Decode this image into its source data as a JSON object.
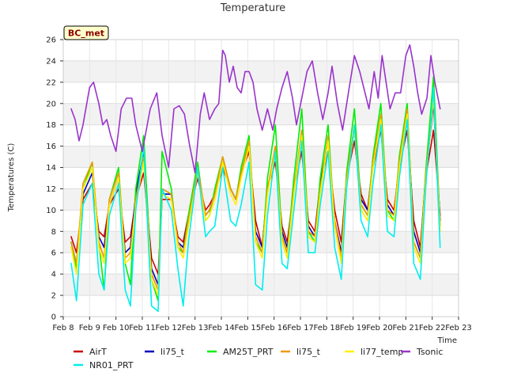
{
  "chart_data": {
    "type": "line",
    "title": "Temperature",
    "xlabel": "Time",
    "ylabel": "Temperatures (C)",
    "badge": "BC_met",
    "xlim": [
      8,
      23
    ],
    "ylim": [
      0,
      26
    ],
    "x_ticks": [
      8,
      9,
      10,
      11,
      12,
      13,
      14,
      15,
      16,
      17,
      18,
      19,
      20,
      21,
      22,
      23
    ],
    "x_tick_labels": [
      "Feb 8",
      "Feb 9",
      "Feb 10",
      "Feb 11",
      "Feb 12",
      "Feb 13",
      "Feb 14",
      "Feb 15",
      "Feb 16",
      "Feb 17",
      "Feb 18",
      "Feb 19",
      "Feb 20",
      "Feb 21",
      "Feb 22",
      "Feb 23"
    ],
    "y_ticks": [
      0,
      2,
      4,
      6,
      8,
      10,
      12,
      14,
      16,
      18,
      20,
      22,
      24,
      26
    ],
    "grid": true,
    "legend_position": "bottom",
    "series": [
      {
        "name": "AirT",
        "color": "#cc0000",
        "x": [
          8.3,
          8.5,
          8.75,
          9.1,
          9.35,
          9.55,
          9.75,
          10.1,
          10.35,
          10.55,
          10.75,
          11.05,
          11.35,
          11.6,
          11.75,
          12.1,
          12.35,
          12.55,
          12.75,
          13.1,
          13.4,
          13.55,
          13.75,
          14.05,
          14.35,
          14.55,
          14.75,
          15.05,
          15.3,
          15.55,
          15.75,
          16.05,
          16.3,
          16.5,
          16.75,
          17.05,
          17.3,
          17.55,
          17.75,
          18.05,
          18.3,
          18.55,
          18.75,
          19.05,
          19.3,
          19.55,
          19.75,
          20.05,
          20.3,
          20.55,
          20.75,
          21.05,
          21.3,
          21.55,
          21.75,
          22.05,
          22.3
        ],
        "y": [
          7.5,
          6.0,
          11.0,
          12.5,
          8.0,
          7.5,
          10.5,
          12.0,
          7.0,
          7.5,
          11.0,
          13.5,
          5.5,
          4.0,
          11.0,
          11.0,
          7.5,
          7.0,
          9.5,
          13.0,
          10.0,
          10.5,
          11.5,
          14.0,
          12.0,
          11.0,
          13.5,
          15.5,
          9.0,
          6.5,
          12.0,
          14.5,
          8.5,
          7.0,
          12.0,
          15.5,
          9.0,
          8.0,
          12.5,
          15.5,
          10.0,
          7.0,
          13.0,
          16.5,
          11.5,
          10.0,
          14.0,
          17.5,
          11.0,
          10.0,
          14.0,
          17.5,
          9.0,
          6.5,
          13.0,
          17.5,
          9.5
        ]
      },
      {
        "name": "li75_t",
        "color": "#0000bb",
        "x": [
          8.3,
          8.5,
          8.75,
          9.1,
          9.35,
          9.55,
          9.75,
          10.1,
          10.35,
          10.55,
          10.75,
          11.05,
          11.35,
          11.6,
          11.75,
          12.1,
          12.35,
          12.55,
          12.75,
          13.1,
          13.4,
          13.55,
          13.75,
          14.05,
          14.35,
          14.55,
          14.75,
          15.05,
          15.3,
          15.55,
          15.75,
          16.05,
          16.3,
          16.5,
          16.75,
          17.05,
          17.3,
          17.55,
          17.75,
          18.05,
          18.3,
          18.55,
          18.75,
          19.05,
          19.3,
          19.55,
          19.75,
          20.05,
          20.3,
          20.55,
          20.75,
          21.05,
          21.3,
          21.55,
          21.75,
          22.05,
          22.3
        ],
        "y": [
          7.0,
          5.0,
          11.5,
          13.5,
          7.5,
          6.5,
          10.5,
          13.0,
          6.0,
          6.5,
          11.5,
          15.5,
          4.5,
          3.0,
          11.5,
          11.5,
          7.0,
          6.5,
          9.0,
          13.5,
          9.5,
          10.0,
          11.5,
          14.5,
          12.0,
          11.0,
          13.5,
          16.0,
          8.0,
          6.5,
          12.0,
          15.5,
          8.0,
          6.5,
          12.0,
          17.0,
          8.5,
          7.5,
          12.5,
          16.5,
          9.0,
          6.0,
          13.0,
          17.5,
          11.0,
          10.0,
          14.5,
          18.5,
          10.5,
          9.5,
          14.5,
          19.0,
          8.0,
          6.0,
          13.0,
          20.0,
          9.0
        ]
      },
      {
        "name": "AM25T_PRT",
        "color": "#00ee00",
        "x": [
          8.3,
          8.5,
          8.75,
          9.1,
          9.35,
          9.55,
          9.75,
          10.1,
          10.35,
          10.55,
          10.75,
          11.05,
          11.35,
          11.6,
          11.75,
          12.1,
          12.35,
          12.55,
          12.75,
          13.1,
          13.4,
          13.55,
          13.75,
          14.05,
          14.35,
          14.55,
          14.75,
          15.05,
          15.3,
          15.55,
          15.75,
          16.05,
          16.3,
          16.5,
          16.75,
          17.05,
          17.3,
          17.55,
          17.75,
          18.05,
          18.3,
          18.55,
          18.75,
          19.05,
          19.3,
          19.55,
          19.75,
          20.05,
          20.3,
          20.55,
          20.75,
          21.05,
          21.3,
          21.55,
          21.75,
          22.05,
          22.3
        ],
        "y": [
          7.0,
          4.5,
          12.0,
          14.5,
          7.0,
          2.5,
          11.0,
          14.0,
          5.0,
          3.0,
          12.0,
          17.0,
          3.5,
          1.5,
          15.5,
          12.0,
          6.5,
          6.0,
          9.5,
          14.5,
          9.0,
          9.5,
          12.0,
          15.0,
          12.0,
          11.0,
          14.0,
          17.0,
          7.0,
          6.0,
          13.0,
          18.0,
          7.5,
          6.0,
          13.0,
          19.5,
          8.0,
          7.0,
          13.0,
          18.0,
          8.5,
          5.5,
          13.5,
          19.5,
          10.5,
          9.5,
          15.0,
          20.0,
          10.0,
          9.0,
          15.0,
          20.0,
          7.0,
          5.5,
          13.5,
          22.5,
          8.5
        ]
      },
      {
        "name": "li75_t",
        "color": "#ee9900",
        "x": [
          8.3,
          8.5,
          8.75,
          9.1,
          9.35,
          9.55,
          9.75,
          10.1,
          10.35,
          10.55,
          10.75,
          11.05,
          11.35,
          11.6,
          11.75,
          12.1,
          12.35,
          12.55,
          12.75,
          13.1,
          13.4,
          13.55,
          13.75,
          14.05,
          14.35,
          14.55,
          14.75,
          15.05,
          15.3,
          15.55,
          15.75,
          16.05,
          16.3,
          16.5,
          16.75,
          17.05,
          17.3,
          17.55,
          17.75,
          18.05,
          18.3,
          18.55,
          18.75,
          19.05,
          19.3,
          19.55,
          19.75,
          20.05,
          20.3,
          20.55,
          20.75,
          21.05,
          21.3,
          21.55,
          21.75,
          22.05,
          22.3
        ],
        "y": [
          7.0,
          5.0,
          12.5,
          14.5,
          7.0,
          5.5,
          11.0,
          13.5,
          5.5,
          6.0,
          11.0,
          15.0,
          4.0,
          2.5,
          12.0,
          11.5,
          7.0,
          6.0,
          9.0,
          14.0,
          9.5,
          10.0,
          11.5,
          15.0,
          12.0,
          11.0,
          13.5,
          16.5,
          7.5,
          6.0,
          12.0,
          16.0,
          7.5,
          6.0,
          12.0,
          17.5,
          8.0,
          7.5,
          12.0,
          17.0,
          9.0,
          5.5,
          13.0,
          18.0,
          10.5,
          9.5,
          14.5,
          19.0,
          10.0,
          9.5,
          14.5,
          19.5,
          7.0,
          5.5,
          13.0,
          21.0,
          8.5
        ]
      },
      {
        "name": "li77_temp",
        "color": "#ffee00",
        "x": [
          8.3,
          8.5,
          8.75,
          9.1,
          9.35,
          9.55,
          9.75,
          10.1,
          10.35,
          10.55,
          10.75,
          11.05,
          11.35,
          11.6,
          11.75,
          12.1,
          12.35,
          12.55,
          12.75,
          13.1,
          13.4,
          13.55,
          13.75,
          14.05,
          14.35,
          14.55,
          14.75,
          15.05,
          15.3,
          15.55,
          15.75,
          16.05,
          16.3,
          16.5,
          16.75,
          17.05,
          17.3,
          17.55,
          17.75,
          18.05,
          18.3,
          18.55,
          18.75,
          19.05,
          19.3,
          19.55,
          19.75,
          20.05,
          20.3,
          20.55,
          20.75,
          21.05,
          21.3,
          21.55,
          21.75,
          22.05,
          22.3
        ],
        "y": [
          6.5,
          4.0,
          12.0,
          14.0,
          6.5,
          5.0,
          10.5,
          13.0,
          5.0,
          5.5,
          10.5,
          14.5,
          3.5,
          2.0,
          11.5,
          11.0,
          6.5,
          5.5,
          8.5,
          13.5,
          9.0,
          9.5,
          11.0,
          14.5,
          11.5,
          10.5,
          13.0,
          16.0,
          7.0,
          5.5,
          11.5,
          15.5,
          7.0,
          5.5,
          11.5,
          17.0,
          7.5,
          7.0,
          11.5,
          16.5,
          8.5,
          5.0,
          12.5,
          17.5,
          10.0,
          9.0,
          14.0,
          18.5,
          9.5,
          9.0,
          14.0,
          19.0,
          6.5,
          5.0,
          12.5,
          20.5,
          8.0
        ]
      },
      {
        "name": "NR01_PRT",
        "color": "#00eeee",
        "x": [
          8.3,
          8.5,
          8.75,
          9.1,
          9.35,
          9.55,
          9.75,
          10.1,
          10.35,
          10.55,
          10.75,
          11.05,
          11.35,
          11.6,
          11.75,
          12.1,
          12.35,
          12.55,
          12.75,
          13.1,
          13.4,
          13.55,
          13.75,
          14.05,
          14.35,
          14.55,
          14.75,
          15.05,
          15.3,
          15.55,
          15.75,
          16.05,
          16.3,
          16.5,
          16.75,
          17.05,
          17.3,
          17.55,
          17.75,
          18.05,
          18.3,
          18.55,
          18.75,
          19.05,
          19.3,
          19.55,
          19.75,
          20.05,
          20.3,
          20.55,
          20.75,
          21.05,
          21.3,
          21.55,
          21.75,
          22.05,
          22.3
        ],
        "y": [
          5.0,
          1.5,
          10.5,
          12.5,
          4.0,
          2.5,
          9.5,
          12.5,
          2.5,
          1.0,
          10.0,
          16.0,
          1.0,
          0.5,
          12.0,
          10.0,
          4.5,
          1.0,
          7.0,
          14.0,
          7.5,
          8.0,
          8.5,
          14.0,
          9.0,
          8.5,
          10.5,
          14.5,
          3.0,
          2.5,
          9.5,
          15.5,
          5.0,
          4.5,
          10.0,
          16.5,
          6.0,
          6.0,
          10.5,
          15.5,
          6.5,
          3.5,
          12.0,
          18.0,
          9.0,
          7.5,
          12.5,
          18.0,
          8.0,
          7.5,
          13.0,
          18.5,
          5.0,
          3.5,
          12.0,
          21.5,
          6.5
        ]
      },
      {
        "name": "Tsonic",
        "color": "#9933cc",
        "x": [
          8.3,
          8.45,
          8.6,
          8.75,
          9.0,
          9.15,
          9.35,
          9.5,
          9.65,
          9.8,
          10.0,
          10.2,
          10.4,
          10.6,
          10.75,
          11.0,
          11.15,
          11.3,
          11.55,
          11.75,
          12.0,
          12.2,
          12.4,
          12.6,
          12.8,
          13.0,
          13.2,
          13.35,
          13.55,
          13.75,
          13.9,
          14.05,
          14.15,
          14.3,
          14.45,
          14.6,
          14.75,
          14.9,
          15.05,
          15.2,
          15.35,
          15.55,
          15.75,
          15.95,
          16.1,
          16.3,
          16.5,
          16.7,
          16.85,
          17.05,
          17.25,
          17.45,
          17.65,
          17.85,
          18.05,
          18.2,
          18.4,
          18.6,
          18.85,
          19.05,
          19.25,
          19.45,
          19.6,
          19.8,
          19.95,
          20.1,
          20.25,
          20.4,
          20.6,
          20.8,
          21.0,
          21.15,
          21.3,
          21.45,
          21.6,
          21.8,
          21.95,
          22.1,
          22.3
        ],
        "y": [
          19.5,
          18.5,
          16.5,
          18.0,
          21.5,
          22.0,
          20.0,
          18.0,
          18.5,
          17.0,
          15.5,
          19.5,
          20.5,
          20.5,
          18.0,
          15.5,
          17.5,
          19.5,
          21.0,
          17.0,
          14.0,
          19.5,
          19.8,
          19.0,
          16.0,
          13.5,
          19.0,
          21.0,
          18.5,
          19.5,
          20.0,
          25.0,
          24.5,
          22.0,
          23.5,
          21.5,
          21.0,
          23.0,
          23.0,
          22.0,
          19.5,
          17.5,
          19.5,
          17.5,
          19.5,
          21.5,
          23.0,
          20.5,
          18.0,
          20.5,
          23.0,
          24.0,
          21.0,
          18.5,
          21.0,
          23.5,
          20.0,
          17.5,
          21.5,
          24.5,
          23.0,
          21.0,
          19.5,
          23.0,
          20.5,
          24.5,
          22.0,
          19.5,
          21.0,
          21.0,
          24.5,
          25.5,
          23.5,
          21.0,
          19.0,
          20.5,
          24.5,
          22.0,
          19.5
        ]
      }
    ]
  }
}
